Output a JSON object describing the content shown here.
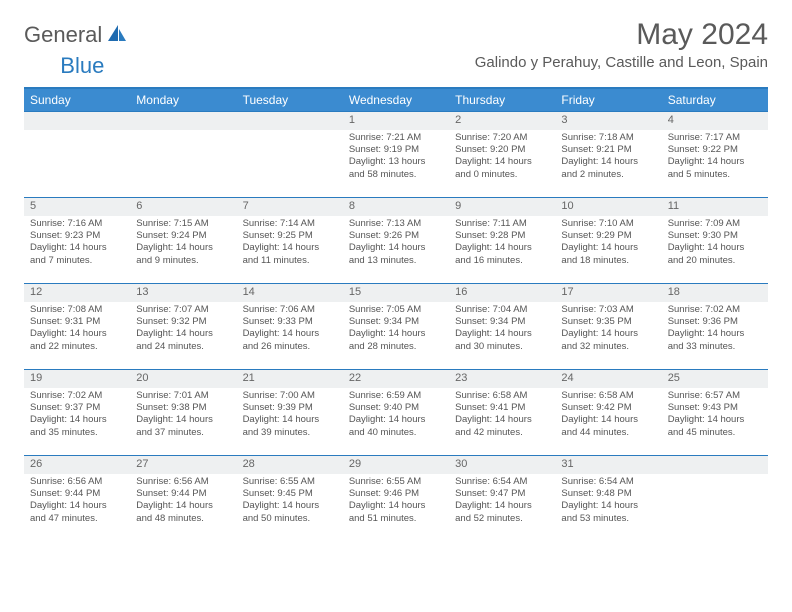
{
  "logo": {
    "text1": "General",
    "text2": "Blue"
  },
  "title": "May 2024",
  "location": "Galindo y Perahuy, Castille and Leon, Spain",
  "colors": {
    "header_bg": "#3b8bd0",
    "border": "#2a7bbf",
    "daynum_bg": "#eef0f1",
    "text": "#555555",
    "title_text": "#5a5a5a"
  },
  "weekdays": [
    "Sunday",
    "Monday",
    "Tuesday",
    "Wednesday",
    "Thursday",
    "Friday",
    "Saturday"
  ],
  "weeks": [
    [
      null,
      null,
      null,
      {
        "n": "1",
        "sr": "7:21 AM",
        "ss": "9:19 PM",
        "dl": "13 hours and 58 minutes."
      },
      {
        "n": "2",
        "sr": "7:20 AM",
        "ss": "9:20 PM",
        "dl": "14 hours and 0 minutes."
      },
      {
        "n": "3",
        "sr": "7:18 AM",
        "ss": "9:21 PM",
        "dl": "14 hours and 2 minutes."
      },
      {
        "n": "4",
        "sr": "7:17 AM",
        "ss": "9:22 PM",
        "dl": "14 hours and 5 minutes."
      }
    ],
    [
      {
        "n": "5",
        "sr": "7:16 AM",
        "ss": "9:23 PM",
        "dl": "14 hours and 7 minutes."
      },
      {
        "n": "6",
        "sr": "7:15 AM",
        "ss": "9:24 PM",
        "dl": "14 hours and 9 minutes."
      },
      {
        "n": "7",
        "sr": "7:14 AM",
        "ss": "9:25 PM",
        "dl": "14 hours and 11 minutes."
      },
      {
        "n": "8",
        "sr": "7:13 AM",
        "ss": "9:26 PM",
        "dl": "14 hours and 13 minutes."
      },
      {
        "n": "9",
        "sr": "7:11 AM",
        "ss": "9:28 PM",
        "dl": "14 hours and 16 minutes."
      },
      {
        "n": "10",
        "sr": "7:10 AM",
        "ss": "9:29 PM",
        "dl": "14 hours and 18 minutes."
      },
      {
        "n": "11",
        "sr": "7:09 AM",
        "ss": "9:30 PM",
        "dl": "14 hours and 20 minutes."
      }
    ],
    [
      {
        "n": "12",
        "sr": "7:08 AM",
        "ss": "9:31 PM",
        "dl": "14 hours and 22 minutes."
      },
      {
        "n": "13",
        "sr": "7:07 AM",
        "ss": "9:32 PM",
        "dl": "14 hours and 24 minutes."
      },
      {
        "n": "14",
        "sr": "7:06 AM",
        "ss": "9:33 PM",
        "dl": "14 hours and 26 minutes."
      },
      {
        "n": "15",
        "sr": "7:05 AM",
        "ss": "9:34 PM",
        "dl": "14 hours and 28 minutes."
      },
      {
        "n": "16",
        "sr": "7:04 AM",
        "ss": "9:34 PM",
        "dl": "14 hours and 30 minutes."
      },
      {
        "n": "17",
        "sr": "7:03 AM",
        "ss": "9:35 PM",
        "dl": "14 hours and 32 minutes."
      },
      {
        "n": "18",
        "sr": "7:02 AM",
        "ss": "9:36 PM",
        "dl": "14 hours and 33 minutes."
      }
    ],
    [
      {
        "n": "19",
        "sr": "7:02 AM",
        "ss": "9:37 PM",
        "dl": "14 hours and 35 minutes."
      },
      {
        "n": "20",
        "sr": "7:01 AM",
        "ss": "9:38 PM",
        "dl": "14 hours and 37 minutes."
      },
      {
        "n": "21",
        "sr": "7:00 AM",
        "ss": "9:39 PM",
        "dl": "14 hours and 39 minutes."
      },
      {
        "n": "22",
        "sr": "6:59 AM",
        "ss": "9:40 PM",
        "dl": "14 hours and 40 minutes."
      },
      {
        "n": "23",
        "sr": "6:58 AM",
        "ss": "9:41 PM",
        "dl": "14 hours and 42 minutes."
      },
      {
        "n": "24",
        "sr": "6:58 AM",
        "ss": "9:42 PM",
        "dl": "14 hours and 44 minutes."
      },
      {
        "n": "25",
        "sr": "6:57 AM",
        "ss": "9:43 PM",
        "dl": "14 hours and 45 minutes."
      }
    ],
    [
      {
        "n": "26",
        "sr": "6:56 AM",
        "ss": "9:44 PM",
        "dl": "14 hours and 47 minutes."
      },
      {
        "n": "27",
        "sr": "6:56 AM",
        "ss": "9:44 PM",
        "dl": "14 hours and 48 minutes."
      },
      {
        "n": "28",
        "sr": "6:55 AM",
        "ss": "9:45 PM",
        "dl": "14 hours and 50 minutes."
      },
      {
        "n": "29",
        "sr": "6:55 AM",
        "ss": "9:46 PM",
        "dl": "14 hours and 51 minutes."
      },
      {
        "n": "30",
        "sr": "6:54 AM",
        "ss": "9:47 PM",
        "dl": "14 hours and 52 minutes."
      },
      {
        "n": "31",
        "sr": "6:54 AM",
        "ss": "9:48 PM",
        "dl": "14 hours and 53 minutes."
      },
      null
    ]
  ],
  "labels": {
    "sunrise": "Sunrise: ",
    "sunset": "Sunset: ",
    "daylight": "Daylight: "
  }
}
